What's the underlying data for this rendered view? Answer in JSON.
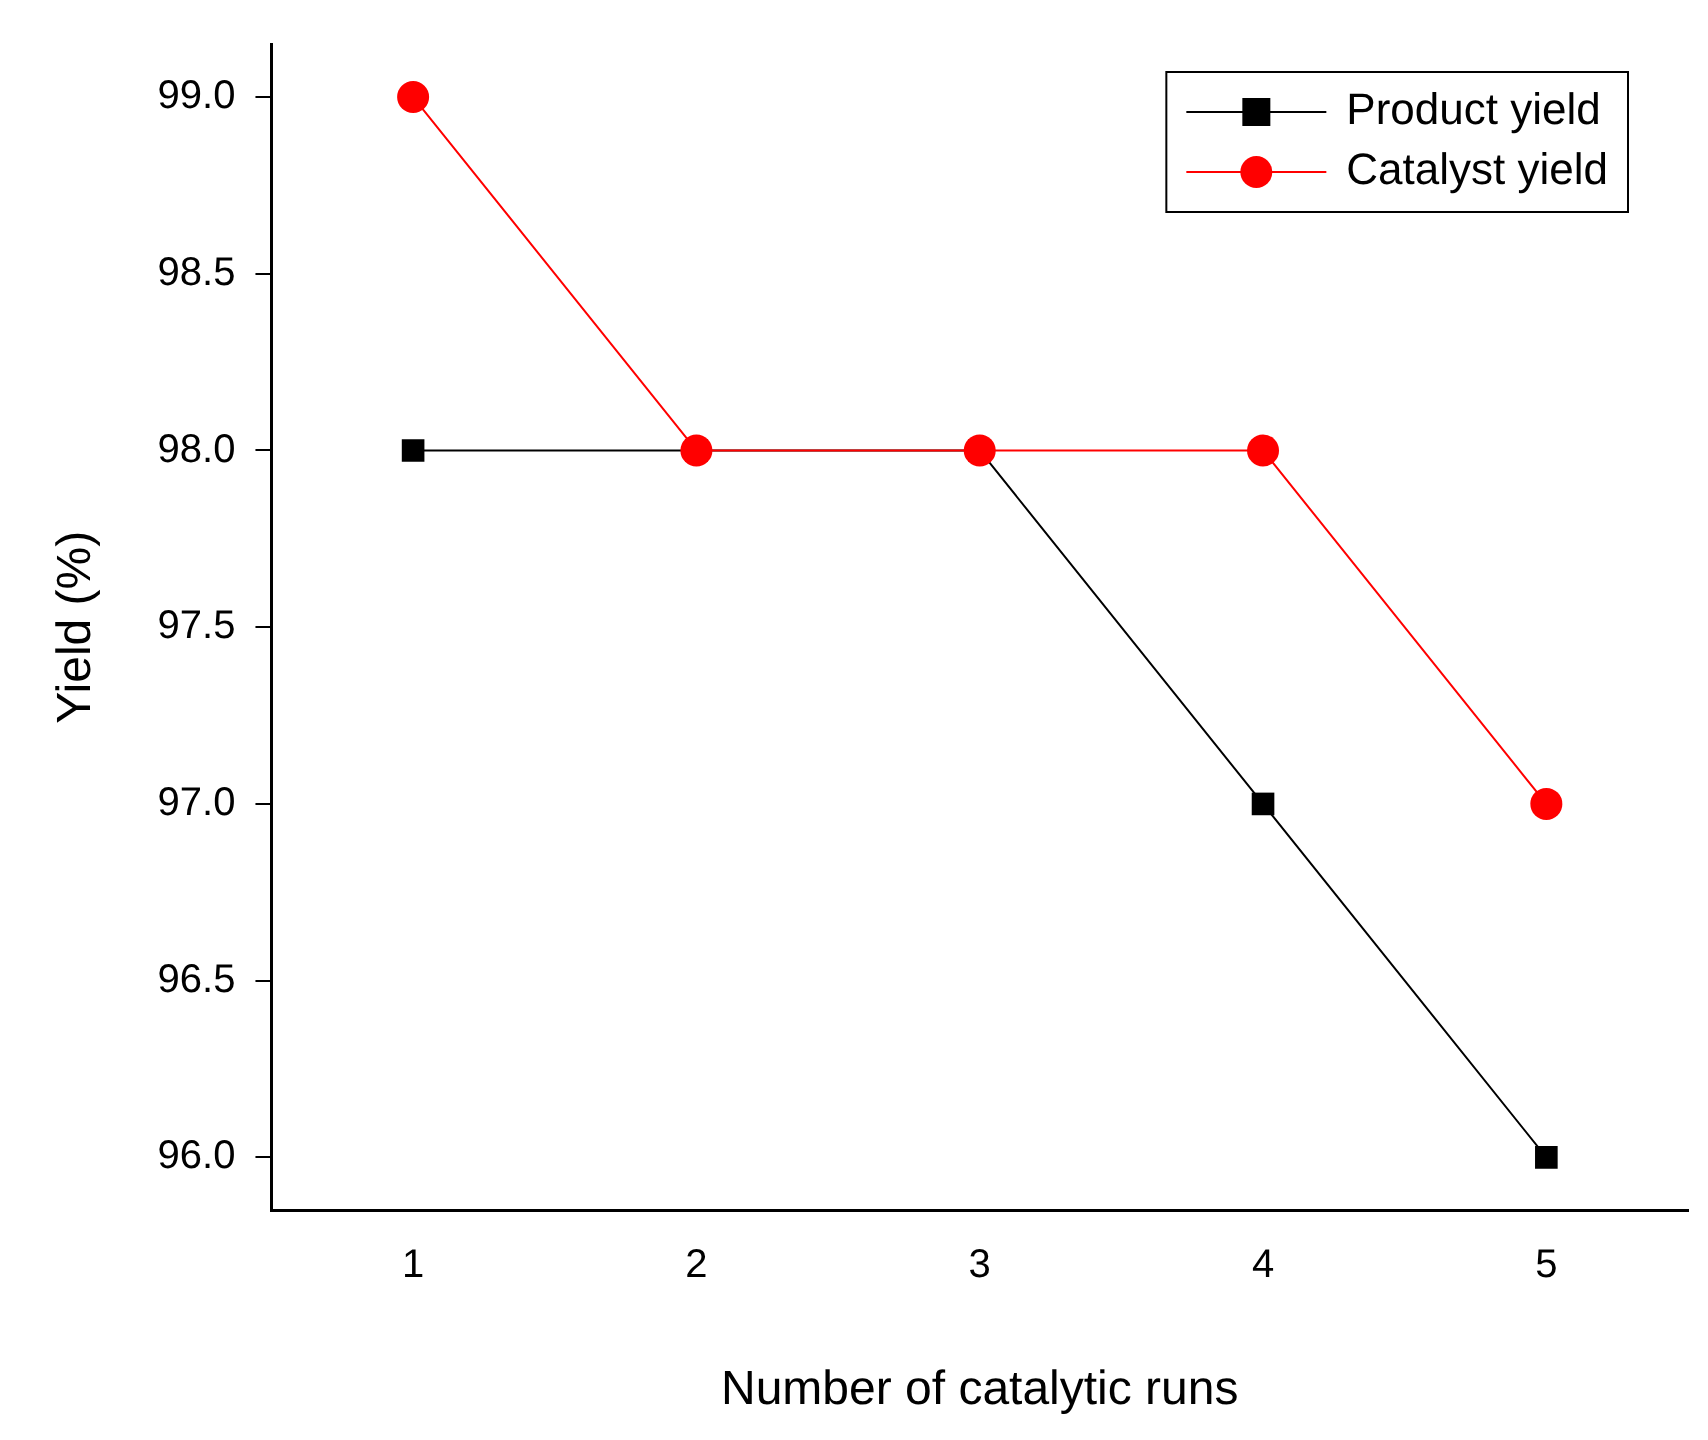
{
  "chart_data": {
    "type": "line",
    "xlabel": "Number of catalytic runs",
    "ylabel": "Yield (%)",
    "x": [
      1,
      2,
      3,
      4,
      5
    ],
    "series": [
      {
        "name": "Product yield",
        "color": "#000000",
        "marker": "square",
        "values": [
          98.0,
          98.0,
          98.0,
          97.0,
          96.0
        ]
      },
      {
        "name": "Catalyst yield",
        "color": "#ff0000",
        "marker": "circle",
        "values": [
          99.0,
          98.0,
          98.0,
          98.0,
          97.0
        ]
      }
    ],
    "xlim": [
      0.5,
      5.5
    ],
    "xticks": [
      1,
      2,
      3,
      4,
      5
    ],
    "ylim": [
      95.85,
      99.15
    ],
    "yticks": [
      {
        "value": 96,
        "label": "96.0"
      },
      {
        "value": 96.5,
        "label": "96.5"
      },
      {
        "value": 97,
        "label": "97.0"
      },
      {
        "value": 97.5,
        "label": "97.5"
      },
      {
        "value": 98,
        "label": "98.0"
      },
      {
        "value": 98.5,
        "label": "98.5"
      },
      {
        "value": 99,
        "label": "99.0"
      }
    ],
    "grid": false,
    "legend": "top right",
    "line_style": "solid"
  }
}
